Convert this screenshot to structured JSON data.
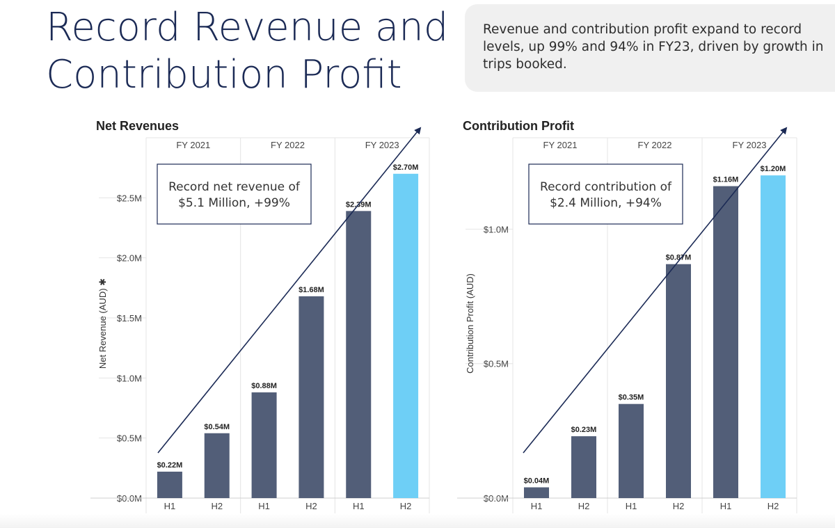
{
  "header": {
    "title_lines": [
      "Record Revenue and",
      "Contribution Profit"
    ],
    "summary": "Revenue and contribution profit expand to record levels, up 99% and 94% in FY23, driven by growth in trips booked."
  },
  "colors": {
    "bar_dark": "#525e78",
    "bar_highlight": "#6ecff6",
    "trend_line": "#1b2a55",
    "grid": "#e4e4e4",
    "title": "#1b2a55"
  },
  "chart_data": [
    {
      "type": "bar",
      "title": "Net Revenues",
      "ylabel": "Net Revenue (AUD) ✱",
      "xlabel": "",
      "periods": [
        "FY 2021",
        "FY 2022",
        "FY 2023"
      ],
      "categories": [
        "H1",
        "H2",
        "H1",
        "H2",
        "H1",
        "H2"
      ],
      "values": [
        0.22,
        0.54,
        0.88,
        1.68,
        2.39,
        2.7
      ],
      "value_labels": [
        "$0.22M",
        "$0.54M",
        "$0.88M",
        "$1.68M",
        "$2.39M",
        "$2.70M"
      ],
      "highlight_index": 5,
      "ylim": [
        0,
        3.0
      ],
      "yticks": [
        0,
        0.5,
        1.0,
        1.5,
        2.0,
        2.5
      ],
      "ytick_labels": [
        "$0.0M",
        "$0.5M",
        "$1.0M",
        "$1.5M",
        "$2.0M",
        "$2.5M"
      ],
      "annotation": [
        "Record net revenue of",
        "$5.1 Million, +99%"
      ],
      "trend_arrow": true,
      "grid": true
    },
    {
      "type": "bar",
      "title": "Contribution Profit",
      "ylabel": "Contribution Profit (AUD)",
      "xlabel": "",
      "periods": [
        "FY 2021",
        "FY 2022",
        "FY 2023"
      ],
      "categories": [
        "H1",
        "H2",
        "H1",
        "H2",
        "H1",
        "H2"
      ],
      "values": [
        0.04,
        0.23,
        0.35,
        0.87,
        1.16,
        1.2
      ],
      "value_labels": [
        "$0.04M",
        "$0.23M",
        "$0.35M",
        "$0.87M",
        "$1.16M",
        "$1.20M"
      ],
      "highlight_index": 5,
      "ylim": [
        0,
        1.34
      ],
      "yticks": [
        0,
        0.5,
        1.0
      ],
      "ytick_labels": [
        "$0.0M",
        "$0.5M",
        "$1.0M"
      ],
      "annotation": [
        "Record contribution of",
        "$2.4 Million, +94%"
      ],
      "trend_arrow": true,
      "grid": true
    }
  ]
}
